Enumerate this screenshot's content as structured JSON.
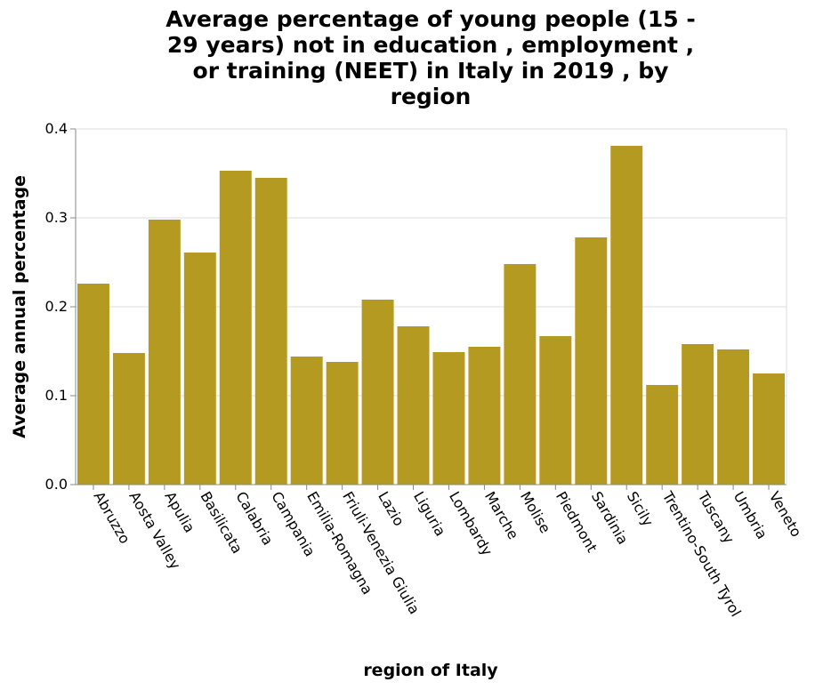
{
  "chart_data": {
    "type": "bar",
    "title": "Average percentage of young people (15 - 29 years) not in education , employment , or training (NEET) in Italy in 2019 , by region",
    "title_lines": [
      "Average percentage of young people (15 -",
      "29 years) not in education , employment ,",
      "or training (NEET) in Italy in 2019 , by",
      "region"
    ],
    "xlabel": "region of Italy",
    "ylabel": "Average annual percentage",
    "ylim": [
      0,
      0.4
    ],
    "yticks": [
      "0.0",
      "0.1",
      "0.2",
      "0.3",
      "0.4"
    ],
    "grid": true,
    "bar_color": "#b59a22",
    "categories": [
      "Abruzzo",
      "Aosta Valley",
      "Apulia",
      "Basilicata",
      "Calabria",
      "Campania",
      "Emilia-Romagna",
      "Friuli-Venezia Giulia",
      "Lazio",
      "Liguria",
      "Lombardy",
      "Marche",
      "Molise",
      "Piedmont",
      "Sardinia",
      "Sicily",
      "Trentino-South Tyrol",
      "Tuscany",
      "Umbria",
      "Veneto"
    ],
    "values": [
      0.226,
      0.148,
      0.298,
      0.261,
      0.353,
      0.345,
      0.144,
      0.138,
      0.208,
      0.178,
      0.149,
      0.155,
      0.248,
      0.167,
      0.278,
      0.381,
      0.112,
      0.158,
      0.152,
      0.125
    ]
  }
}
